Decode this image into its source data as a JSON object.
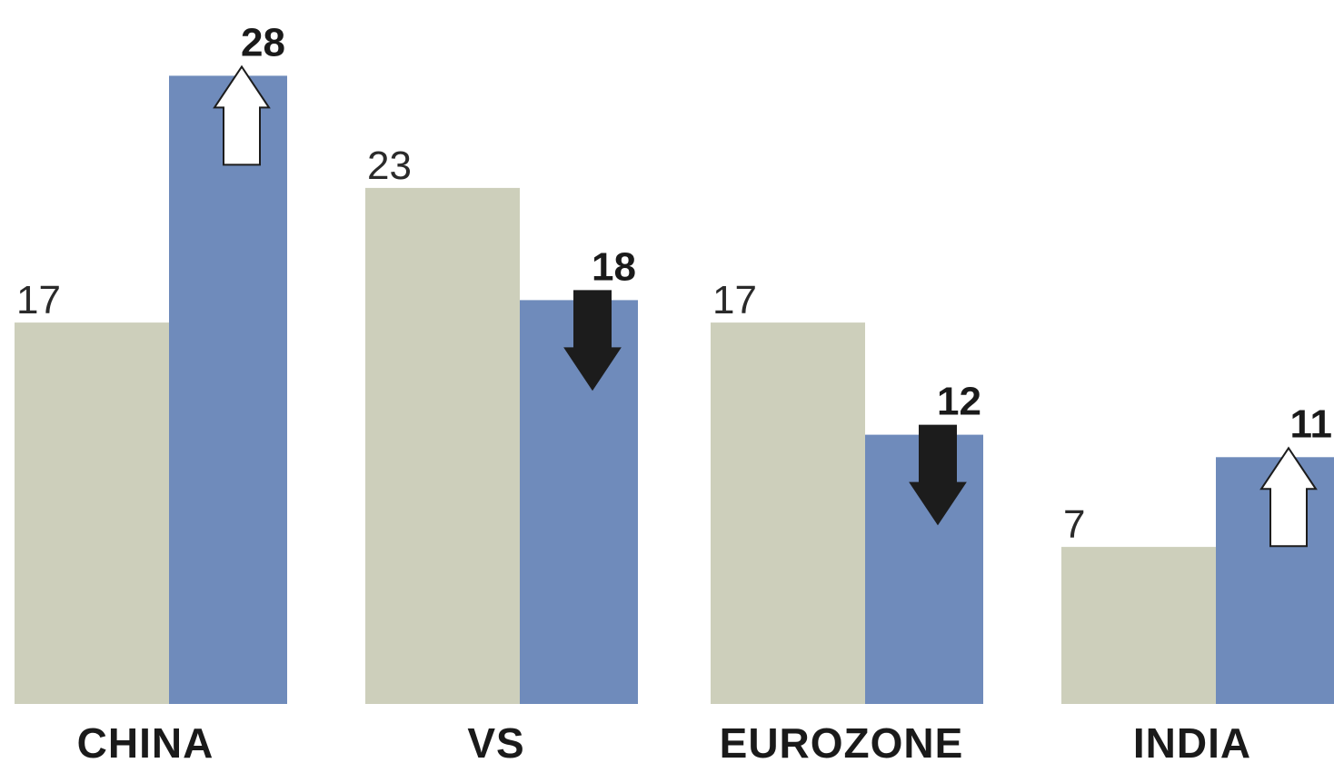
{
  "chart_data": {
    "type": "bar",
    "categories": [
      "CHINA",
      "VS",
      "EUROZONE",
      "INDIA"
    ],
    "series": [
      {
        "values": [
          17,
          23,
          17,
          7
        ]
      },
      {
        "values": [
          28,
          18,
          12,
          11
        ]
      }
    ],
    "directions": [
      "up",
      "down",
      "down",
      "up"
    ],
    "ylim": [
      0,
      30
    ],
    "grid": false,
    "legend": "none",
    "title": "",
    "xlabel": "",
    "ylabel": ""
  },
  "colors": {
    "before": "#cdcfbb",
    "after": "#6f8bbb",
    "text": "#2a2a2a",
    "arrow_up_fill": "#ffffff",
    "arrow_down_fill": "#1c1c1c"
  }
}
